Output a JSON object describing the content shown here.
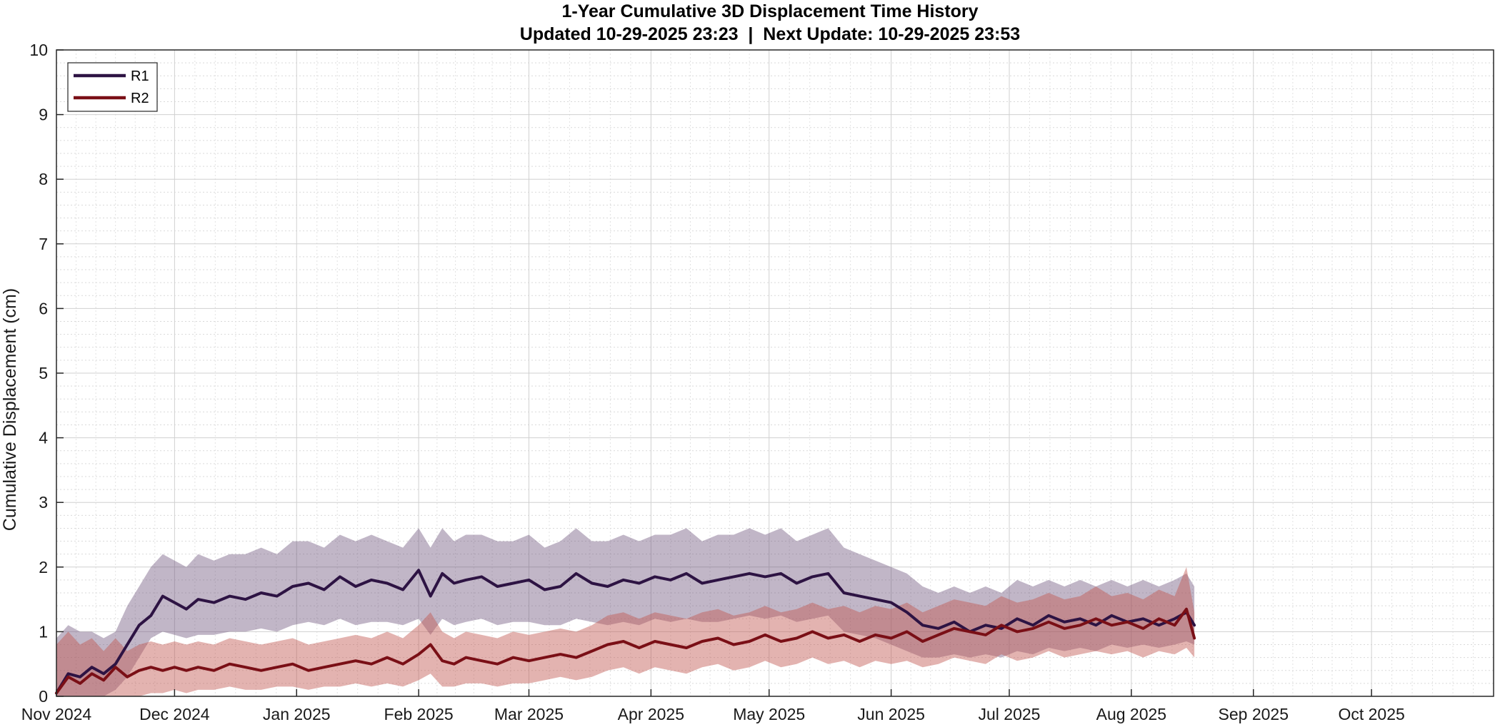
{
  "chart_data": {
    "type": "line",
    "title": "1-Year Cumulative 3D Displacement Time History",
    "subtitle": "Updated 10-29-2025 23:23  |  Next Update: 10-29-2025 23:53",
    "xlabel": "",
    "ylabel": "Cumulative Displacement (cm)",
    "ylim": [
      0,
      10
    ],
    "xlim_days": [
      0,
      365
    ],
    "yticks": [
      0,
      1,
      2,
      3,
      4,
      5,
      6,
      7,
      8,
      9,
      10
    ],
    "xticks": [
      {
        "label": "Nov 2024",
        "day": 0
      },
      {
        "label": "Dec 2024",
        "day": 30
      },
      {
        "label": "Jan 2025",
        "day": 61
      },
      {
        "label": "Feb 2025",
        "day": 92
      },
      {
        "label": "Mar 2025",
        "day": 120
      },
      {
        "label": "Apr 2025",
        "day": 151
      },
      {
        "label": "May 2025",
        "day": 181
      },
      {
        "label": "Jun 2025",
        "day": 212
      },
      {
        "label": "Jul 2025",
        "day": 242
      },
      {
        "label": "Aug 2025",
        "day": 273
      },
      {
        "label": "Sep 2025",
        "day": 304
      },
      {
        "label": "Oct 2025",
        "day": 334
      }
    ],
    "grid": true,
    "minor_grid": true,
    "legend_position": "top-left",
    "x_unit": "days since 2024-11-01",
    "series": [
      {
        "name": "R1",
        "color": "#2d1343",
        "band_color": "#6b5079",
        "x": [
          0,
          3,
          6,
          9,
          12,
          15,
          18,
          21,
          24,
          27,
          30,
          33,
          36,
          40,
          44,
          48,
          52,
          56,
          60,
          64,
          68,
          72,
          76,
          80,
          84,
          88,
          92,
          95,
          98,
          101,
          104,
          108,
          112,
          116,
          120,
          124,
          128,
          132,
          136,
          140,
          144,
          148,
          152,
          156,
          160,
          164,
          168,
          172,
          176,
          180,
          184,
          188,
          192,
          196,
          200,
          204,
          208,
          212,
          216,
          220,
          224,
          228,
          232,
          236,
          240,
          244,
          248,
          252,
          256,
          260,
          264,
          268,
          272,
          276,
          280,
          284,
          287,
          289
        ],
        "values": [
          0.05,
          0.35,
          0.3,
          0.45,
          0.35,
          0.5,
          0.8,
          1.1,
          1.25,
          1.55,
          1.45,
          1.35,
          1.5,
          1.45,
          1.55,
          1.5,
          1.6,
          1.55,
          1.7,
          1.75,
          1.65,
          1.85,
          1.7,
          1.8,
          1.75,
          1.65,
          1.95,
          1.55,
          1.9,
          1.75,
          1.8,
          1.85,
          1.7,
          1.75,
          1.8,
          1.65,
          1.7,
          1.9,
          1.75,
          1.7,
          1.8,
          1.75,
          1.85,
          1.8,
          1.9,
          1.75,
          1.8,
          1.85,
          1.9,
          1.85,
          1.9,
          1.75,
          1.85,
          1.9,
          1.6,
          1.55,
          1.5,
          1.45,
          1.3,
          1.1,
          1.05,
          1.15,
          1.0,
          1.1,
          1.05,
          1.2,
          1.1,
          1.25,
          1.15,
          1.2,
          1.1,
          1.25,
          1.15,
          1.2,
          1.1,
          1.2,
          1.3,
          1.1
        ],
        "band_low": [
          0.0,
          0.0,
          0.0,
          0.0,
          0.0,
          0.1,
          0.3,
          0.6,
          0.9,
          1.0,
          0.95,
          0.9,
          0.95,
          0.95,
          1.0,
          1.0,
          1.05,
          1.0,
          1.1,
          1.15,
          1.1,
          1.2,
          1.1,
          1.15,
          1.15,
          1.1,
          1.2,
          0.95,
          1.2,
          1.1,
          1.15,
          1.2,
          1.1,
          1.15,
          1.15,
          1.1,
          1.1,
          1.2,
          1.15,
          1.1,
          1.15,
          1.1,
          1.2,
          1.15,
          1.2,
          1.15,
          1.15,
          1.2,
          1.25,
          1.2,
          1.25,
          1.15,
          1.2,
          1.25,
          1.0,
          0.95,
          0.9,
          0.8,
          0.7,
          0.6,
          0.6,
          0.65,
          0.6,
          0.65,
          0.6,
          0.7,
          0.65,
          0.75,
          0.7,
          0.75,
          0.7,
          0.8,
          0.75,
          0.8,
          0.75,
          0.8,
          0.85,
          0.8
        ],
        "band_high": [
          0.9,
          1.1,
          1.0,
          1.0,
          0.9,
          1.0,
          1.4,
          1.7,
          2.0,
          2.2,
          2.1,
          2.0,
          2.2,
          2.1,
          2.2,
          2.2,
          2.3,
          2.2,
          2.4,
          2.4,
          2.3,
          2.5,
          2.4,
          2.5,
          2.4,
          2.3,
          2.6,
          2.3,
          2.6,
          2.4,
          2.5,
          2.5,
          2.4,
          2.4,
          2.5,
          2.3,
          2.4,
          2.6,
          2.4,
          2.4,
          2.5,
          2.4,
          2.5,
          2.5,
          2.6,
          2.4,
          2.5,
          2.5,
          2.6,
          2.5,
          2.6,
          2.4,
          2.5,
          2.6,
          2.3,
          2.2,
          2.1,
          2.0,
          1.9,
          1.7,
          1.6,
          1.7,
          1.6,
          1.7,
          1.6,
          1.8,
          1.7,
          1.8,
          1.7,
          1.8,
          1.7,
          1.8,
          1.7,
          1.8,
          1.7,
          1.8,
          1.9,
          1.7
        ]
      },
      {
        "name": "R2",
        "color": "#7a0f16",
        "band_color": "#c0564f",
        "x": [
          0,
          3,
          6,
          9,
          12,
          15,
          18,
          21,
          24,
          27,
          30,
          33,
          36,
          40,
          44,
          48,
          52,
          56,
          60,
          64,
          68,
          72,
          76,
          80,
          84,
          88,
          92,
          95,
          98,
          101,
          104,
          108,
          112,
          116,
          120,
          124,
          128,
          132,
          136,
          140,
          144,
          148,
          152,
          156,
          160,
          164,
          168,
          172,
          176,
          180,
          184,
          188,
          192,
          196,
          200,
          204,
          208,
          212,
          216,
          220,
          224,
          228,
          232,
          236,
          240,
          244,
          248,
          252,
          256,
          260,
          264,
          268,
          272,
          276,
          280,
          284,
          287,
          289
        ],
        "values": [
          0.05,
          0.3,
          0.2,
          0.35,
          0.25,
          0.45,
          0.3,
          0.4,
          0.45,
          0.4,
          0.45,
          0.4,
          0.45,
          0.4,
          0.5,
          0.45,
          0.4,
          0.45,
          0.5,
          0.4,
          0.45,
          0.5,
          0.55,
          0.5,
          0.6,
          0.5,
          0.65,
          0.8,
          0.55,
          0.5,
          0.6,
          0.55,
          0.5,
          0.6,
          0.55,
          0.6,
          0.65,
          0.6,
          0.7,
          0.8,
          0.85,
          0.75,
          0.85,
          0.8,
          0.75,
          0.85,
          0.9,
          0.8,
          0.85,
          0.95,
          0.85,
          0.9,
          1.0,
          0.9,
          0.95,
          0.85,
          0.95,
          0.9,
          1.0,
          0.85,
          0.95,
          1.05,
          1.0,
          0.95,
          1.1,
          1.0,
          1.05,
          1.15,
          1.05,
          1.1,
          1.2,
          1.1,
          1.15,
          1.05,
          1.2,
          1.1,
          1.35,
          0.9
        ],
        "band_low": [
          0.0,
          0.0,
          0.0,
          0.0,
          0.0,
          0.0,
          0.0,
          0.0,
          0.05,
          0.05,
          0.1,
          0.05,
          0.1,
          0.1,
          0.15,
          0.1,
          0.1,
          0.15,
          0.15,
          0.1,
          0.15,
          0.15,
          0.2,
          0.15,
          0.2,
          0.15,
          0.25,
          0.35,
          0.15,
          0.15,
          0.2,
          0.2,
          0.15,
          0.2,
          0.2,
          0.25,
          0.3,
          0.25,
          0.3,
          0.4,
          0.45,
          0.35,
          0.45,
          0.4,
          0.35,
          0.45,
          0.5,
          0.4,
          0.45,
          0.55,
          0.45,
          0.5,
          0.6,
          0.5,
          0.55,
          0.45,
          0.55,
          0.5,
          0.55,
          0.45,
          0.5,
          0.6,
          0.55,
          0.5,
          0.65,
          0.55,
          0.6,
          0.7,
          0.6,
          0.65,
          0.7,
          0.65,
          0.7,
          0.6,
          0.7,
          0.65,
          0.75,
          0.6
        ],
        "band_high": [
          0.8,
          1.0,
          0.8,
          0.9,
          0.7,
          0.9,
          0.7,
          0.8,
          0.85,
          0.8,
          0.85,
          0.8,
          0.85,
          0.8,
          0.9,
          0.85,
          0.8,
          0.85,
          0.9,
          0.8,
          0.85,
          0.9,
          0.95,
          0.9,
          1.0,
          0.9,
          1.1,
          1.3,
          1.0,
          0.9,
          1.0,
          0.95,
          0.9,
          1.0,
          0.95,
          1.0,
          1.05,
          1.0,
          1.1,
          1.25,
          1.3,
          1.2,
          1.3,
          1.25,
          1.2,
          1.3,
          1.35,
          1.25,
          1.3,
          1.4,
          1.3,
          1.35,
          1.45,
          1.35,
          1.4,
          1.3,
          1.4,
          1.35,
          1.45,
          1.3,
          1.4,
          1.5,
          1.45,
          1.4,
          1.55,
          1.45,
          1.5,
          1.6,
          1.5,
          1.55,
          1.7,
          1.55,
          1.6,
          1.5,
          1.65,
          1.55,
          2.0,
          1.3
        ]
      }
    ]
  }
}
